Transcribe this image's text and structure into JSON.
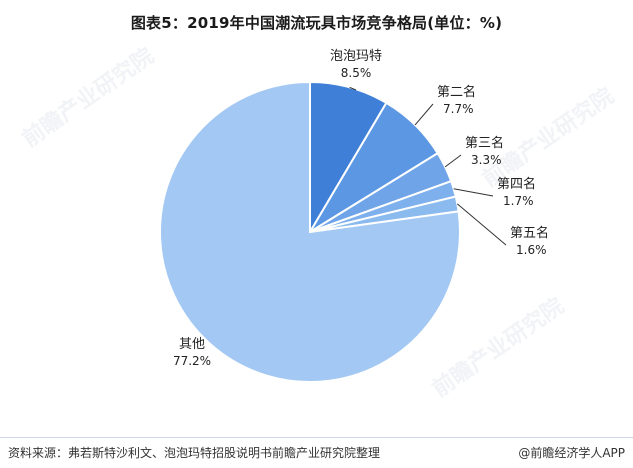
{
  "title": "图表5：2019年中国潮流玩具市场竞争格局(单位：%)",
  "source": "资料来源：弗若斯特沙利文、泡泡玛特招股说明书前瞻产业研究院整理",
  "brand": "@前瞻经济学人APP",
  "chart_data": {
    "type": "pie",
    "title": "图表5：2019年中国潮流玩具市场竞争格局(单位：%)",
    "unit": "%",
    "start_angle": "12 o'clock, clockwise",
    "legend": "none (leader-line labels)",
    "slices": [
      {
        "label": "泡泡玛特",
        "value": 8.5,
        "display": "8.5%",
        "color": "#3f7fd8"
      },
      {
        "label": "第二名",
        "value": 7.7,
        "display": "7.7%",
        "color": "#5b97e3"
      },
      {
        "label": "第三名",
        "value": 3.3,
        "display": "3.3%",
        "color": "#6fa5e8"
      },
      {
        "label": "第四名",
        "value": 1.7,
        "display": "1.7%",
        "color": "#7db0ec"
      },
      {
        "label": "第五名",
        "value": 1.6,
        "display": "1.6%",
        "color": "#8bbaef"
      },
      {
        "label": "其他",
        "value": 77.2,
        "display": "77.2%",
        "color": "#a3c8f4"
      }
    ]
  }
}
